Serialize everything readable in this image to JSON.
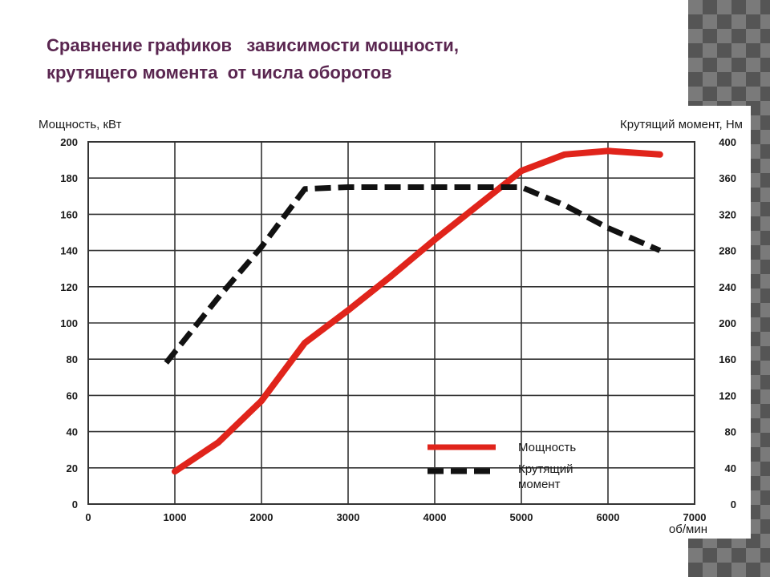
{
  "slide": {
    "title_line1": "Сравнение графиков   зависимости мощности,",
    "title_line2": "крутящего момента  от числа оборотов"
  },
  "colors": {
    "title": "#5a2650",
    "power_line": "#e0241b",
    "torque_line": "#111111",
    "grid": "#333333"
  },
  "chart_data": {
    "type": "line",
    "ylabel_left": "Мощность, кВт",
    "ylabel_right": "Крутящий момент, Нм",
    "xlabel": "об/мин",
    "xlim": [
      0,
      7000
    ],
    "ylim_left": [
      0,
      200
    ],
    "ylim_right": [
      0,
      400
    ],
    "x_ticks": [
      "0",
      "1000",
      "2000",
      "3000",
      "4000",
      "5000",
      "6000",
      "7000"
    ],
    "y_ticks_left": [
      "0",
      "20",
      "40",
      "60",
      "80",
      "100",
      "120",
      "140",
      "160",
      "180",
      "200"
    ],
    "y_ticks_right": [
      "0",
      "40",
      "80",
      "120",
      "160",
      "200",
      "240",
      "280",
      "320",
      "360",
      "400"
    ],
    "grid": true,
    "legend_position": "bottom-right",
    "series": [
      {
        "name": "Мощность",
        "axis": "left",
        "style": "solid",
        "color": "#e0241b",
        "x": [
          1000,
          1500,
          2000,
          2500,
          3000,
          3500,
          4000,
          4500,
          5000,
          5500,
          6000,
          6600
        ],
        "values": [
          18,
          34,
          57,
          89,
          107,
          126,
          146,
          165,
          184,
          193,
          195,
          193
        ]
      },
      {
        "name": "Крутящий момент",
        "axis": "right",
        "style": "dashed",
        "color": "#111111",
        "x": [
          900,
          1500,
          2000,
          2500,
          3000,
          4000,
          5000,
          5500,
          6000,
          6600
        ],
        "values": [
          156,
          228,
          284,
          348,
          350,
          350,
          350,
          330,
          305,
          280
        ]
      }
    ],
    "legend": [
      {
        "label": "Мощность"
      },
      {
        "label_line1": "Крутящий",
        "label_line2": "момент"
      }
    ]
  }
}
